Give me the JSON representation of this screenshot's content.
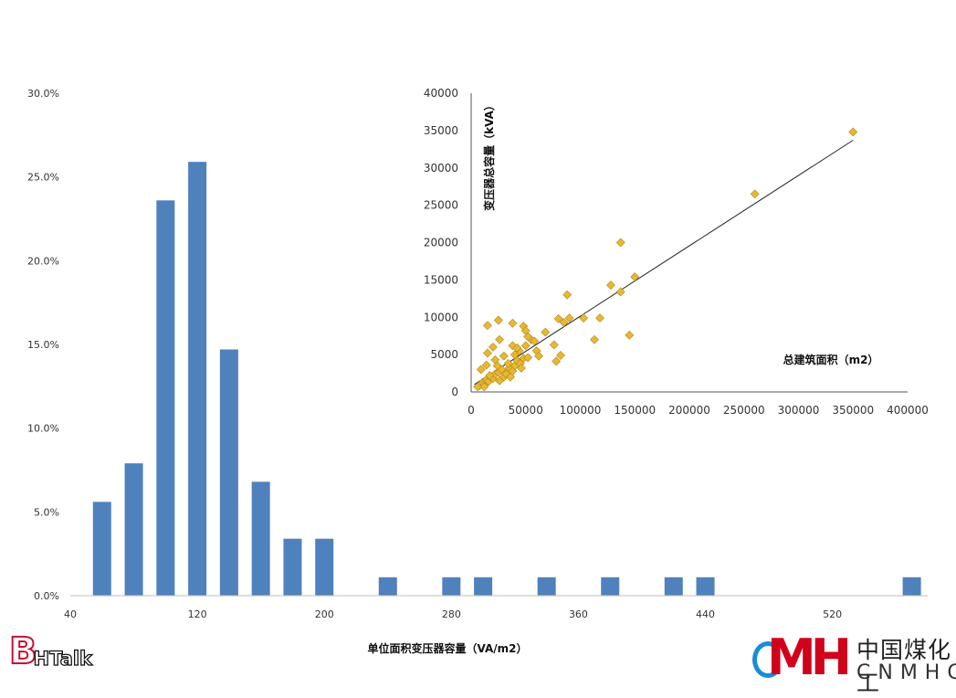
{
  "chart_data": [
    {
      "type": "bar",
      "xlabel": "单位面积变压器容量（VA/m2）",
      "ylabel": "",
      "x_ticks": [
        "40",
        "120",
        "200",
        "280",
        "360",
        "440",
        "520"
      ],
      "x_range": [
        40,
        580
      ],
      "ylim": [
        0,
        30
      ],
      "y_ticks": [
        "0.0%",
        "5.0%",
        "10.0%",
        "15.0%",
        "20.0%",
        "25.0%",
        "30.0%"
      ],
      "color": "#4f81bd",
      "x": [
        60,
        80,
        100,
        120,
        140,
        160,
        180,
        200,
        240,
        280,
        300,
        340,
        380,
        420,
        440,
        570
      ],
      "values": [
        5.6,
        7.9,
        23.6,
        25.9,
        14.7,
        6.8,
        3.4,
        3.4,
        1.1,
        1.1,
        1.1,
        1.1,
        1.1,
        1.1,
        1.1,
        1.1
      ],
      "grid": false,
      "legend": "none"
    },
    {
      "type": "scatter",
      "xlabel": "总建筑面积（m2）",
      "ylabel": "变压器总容量（kVA）",
      "xlim": [
        0,
        400000
      ],
      "ylim": [
        0,
        40000
      ],
      "x_ticks": [
        "0",
        "50000",
        "100000",
        "150000",
        "200000",
        "250000",
        "300000",
        "350000",
        "400000"
      ],
      "y_ticks": [
        "0",
        "5000",
        "10000",
        "15000",
        "20000",
        "25000",
        "30000",
        "35000",
        "40000"
      ],
      "marker": "diamond",
      "color": "#e8b830",
      "edge_color": "#b08820",
      "trendline": {
        "x": [
          3000,
          350000
        ],
        "y": [
          1000,
          33700
        ],
        "color": "#222222"
      },
      "grid": false,
      "legend": "none",
      "points": [
        [
          8000,
          900
        ],
        [
          10000,
          1200
        ],
        [
          12000,
          1000
        ],
        [
          14000,
          1600
        ],
        [
          16000,
          1400
        ],
        [
          18000,
          2000
        ],
        [
          20000,
          1800
        ],
        [
          22000,
          2400
        ],
        [
          25000,
          2600
        ],
        [
          28000,
          3000
        ],
        [
          30000,
          2000
        ],
        [
          32000,
          2400
        ],
        [
          35000,
          3200
        ],
        [
          38000,
          2800
        ],
        [
          40000,
          3500
        ],
        [
          42000,
          4200
        ],
        [
          45000,
          3800
        ],
        [
          48000,
          4500
        ],
        [
          26000,
          1500
        ],
        [
          36000,
          2000
        ],
        [
          12000,
          700
        ],
        [
          6000,
          700
        ],
        [
          17000,
          2200
        ],
        [
          24000,
          3500
        ],
        [
          14000,
          3600
        ],
        [
          22000,
          4300
        ],
        [
          30000,
          4800
        ],
        [
          34000,
          3800
        ],
        [
          40000,
          5000
        ],
        [
          44000,
          5500
        ],
        [
          15000,
          5200
        ],
        [
          20000,
          6000
        ],
        [
          26000,
          7000
        ],
        [
          38000,
          6200
        ],
        [
          42000,
          5900
        ],
        [
          50000,
          6200
        ],
        [
          55000,
          7000
        ],
        [
          58000,
          6800
        ],
        [
          60000,
          5500
        ],
        [
          62000,
          4800
        ],
        [
          68000,
          8000
        ],
        [
          15000,
          8900
        ],
        [
          25000,
          9600
        ],
        [
          38000,
          9200
        ],
        [
          48000,
          8800
        ],
        [
          50000,
          8200
        ],
        [
          52000,
          7400
        ],
        [
          80000,
          9800
        ],
        [
          85000,
          9300
        ],
        [
          88000,
          13000
        ],
        [
          90000,
          9900
        ],
        [
          103000,
          9900
        ],
        [
          113000,
          7000
        ],
        [
          118000,
          9900
        ],
        [
          128000,
          14300
        ],
        [
          137000,
          13400
        ],
        [
          137000,
          20000
        ],
        [
          145000,
          7600
        ],
        [
          150000,
          15400
        ],
        [
          76000,
          6300
        ],
        [
          78000,
          4100
        ],
        [
          82000,
          4900
        ],
        [
          46000,
          3200
        ],
        [
          52000,
          4600
        ],
        [
          9000,
          3000
        ],
        [
          260000,
          26500
        ],
        [
          350000,
          34800
        ]
      ]
    }
  ]
}
